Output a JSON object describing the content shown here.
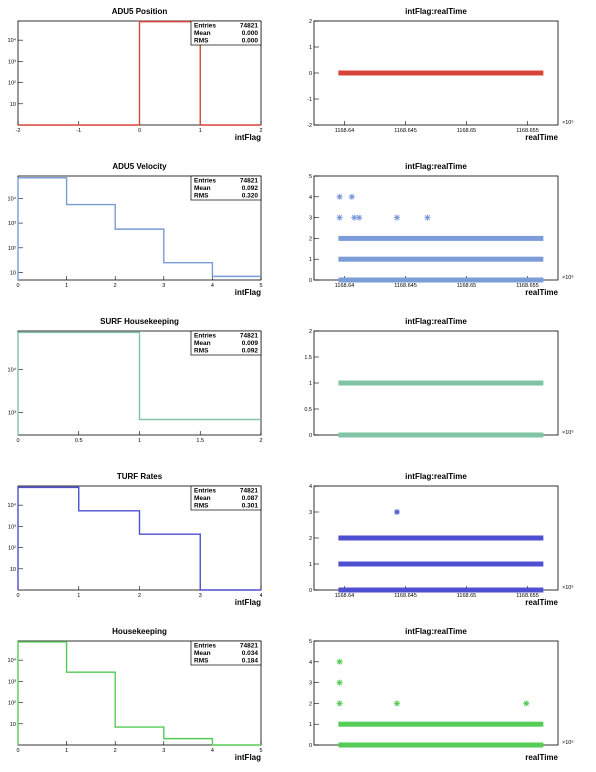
{
  "page": {
    "bg": "#ffffff"
  },
  "chart_data": [
    {
      "type": "histogram",
      "title": "ADU5 Position",
      "xlabel": "intFlag",
      "ylabel": "",
      "color": "#d9443a",
      "log_y": true,
      "xlim": [
        -2,
        2
      ],
      "ylim": [
        1,
        80000
      ],
      "xticks": [
        -2,
        -1,
        0,
        1,
        2
      ],
      "yticks": [
        {
          "v": 10,
          "label": "10"
        },
        {
          "v": 100,
          "label": "10²"
        },
        {
          "v": 1000,
          "label": "10³"
        },
        {
          "v": 10000,
          "label": "10⁴"
        }
      ],
      "bin_edges": [
        -2,
        -1,
        0,
        1,
        2
      ],
      "counts": [
        0,
        0,
        74821,
        0
      ],
      "stats": [
        {
          "k": "Entries",
          "v": "74821"
        },
        {
          "k": "Mean",
          "v": "0.000"
        },
        {
          "k": "RMS",
          "v": "0.000"
        }
      ]
    },
    {
      "type": "scatter",
      "title": "intFlag:realTime",
      "xlabel": "realTime",
      "ylabel": "",
      "color": "#d9443a",
      "exponent": "×10⁶",
      "xlim": [
        1168.6375,
        1168.6575
      ],
      "ylim": [
        -2,
        2
      ],
      "xticks": [
        {
          "v": 1168.64,
          "label": "1168.64"
        },
        {
          "v": 1168.645,
          "label": "1168.645"
        },
        {
          "v": 1168.65,
          "label": "1168.65"
        },
        {
          "v": 1168.655,
          "label": "1168.655"
        }
      ],
      "yticks": [
        {
          "v": -2,
          "label": "-2"
        },
        {
          "v": -1,
          "label": "-1"
        },
        {
          "v": 0,
          "label": "0"
        },
        {
          "v": 1,
          "label": "1"
        },
        {
          "v": 2,
          "label": "2"
        }
      ],
      "bands": [
        {
          "y": 0,
          "x0": 1168.6395,
          "x1": 1168.6563
        }
      ],
      "points": []
    },
    {
      "type": "histogram",
      "title": "ADU5 Velocity",
      "xlabel": "intFlag",
      "ylabel": "",
      "color": "#7b9bd9",
      "log_y": true,
      "xlim": [
        0,
        5
      ],
      "ylim": [
        5,
        80000
      ],
      "xticks": [
        0,
        1,
        2,
        3,
        4,
        5
      ],
      "yticks": [
        {
          "v": 10,
          "label": "10"
        },
        {
          "v": 100,
          "label": "10²"
        },
        {
          "v": 1000,
          "label": "10³"
        },
        {
          "v": 10000,
          "label": "10⁴"
        }
      ],
      "bin_edges": [
        0,
        1,
        2,
        3,
        4,
        5
      ],
      "counts": [
        68000,
        5600,
        570,
        25,
        7
      ],
      "stats": [
        {
          "k": "Entries",
          "v": "74821"
        },
        {
          "k": "Mean",
          "v": "0.092"
        },
        {
          "k": "RMS",
          "v": "0.320"
        }
      ]
    },
    {
      "type": "scatter",
      "title": "intFlag:realTime",
      "xlabel": "realTime",
      "ylabel": "",
      "color": "#7b9bd9",
      "exponent": "×10⁶",
      "xlim": [
        1168.6375,
        1168.6575
      ],
      "ylim": [
        0,
        5
      ],
      "xticks": [
        {
          "v": 1168.64,
          "label": "1168.64"
        },
        {
          "v": 1168.645,
          "label": "1168.645"
        },
        {
          "v": 1168.65,
          "label": "1168.65"
        },
        {
          "v": 1168.655,
          "label": "1168.655"
        }
      ],
      "yticks": [
        {
          "v": 0,
          "label": "0"
        },
        {
          "v": 1,
          "label": "1"
        },
        {
          "v": 2,
          "label": "2"
        },
        {
          "v": 3,
          "label": "3"
        },
        {
          "v": 4,
          "label": "4"
        },
        {
          "v": 5,
          "label": "5"
        }
      ],
      "bands": [
        {
          "y": 0,
          "x0": 1168.6395,
          "x1": 1168.6563
        },
        {
          "y": 1,
          "x0": 1168.6395,
          "x1": 1168.6563
        },
        {
          "y": 2,
          "x0": 1168.6395,
          "x1": 1168.6563
        }
      ],
      "points": [
        [
          1168.6396,
          4
        ],
        [
          1168.6406,
          4
        ],
        [
          1168.6396,
          3
        ],
        [
          1168.6408,
          3
        ],
        [
          1168.6412,
          3
        ],
        [
          1168.6443,
          3
        ],
        [
          1168.6468,
          3
        ]
      ]
    },
    {
      "type": "histogram",
      "title": "SURF Housekeeping",
      "xlabel": "",
      "ylabel": "",
      "color": "#7fc4a4",
      "log_y": true,
      "xlim": [
        0,
        2
      ],
      "ylim": [
        300,
        80000
      ],
      "xticks": [
        {
          "v": 0,
          "label": "0"
        },
        {
          "v": 0.5,
          "label": "0.5"
        },
        {
          "v": 1,
          "label": "1"
        },
        {
          "v": 1.5,
          "label": "1.5"
        },
        {
          "v": 2,
          "label": "2"
        }
      ],
      "yticks": [
        {
          "v": 1000,
          "label": "10³"
        },
        {
          "v": 10000,
          "label": "10⁴"
        }
      ],
      "bin_edges": [
        0,
        1,
        2
      ],
      "counts": [
        74100,
        690
      ],
      "stats": [
        {
          "k": "Entries",
          "v": "74821"
        },
        {
          "k": "Mean",
          "v": "0.009"
        },
        {
          "k": "RMS",
          "v": "0.092"
        }
      ]
    },
    {
      "type": "scatter",
      "title": "intFlag:realTime",
      "xlabel": "",
      "ylabel": "",
      "color": "#7fc4a4",
      "exponent": "×10⁶",
      "xlim": [
        1168.6375,
        1168.6575
      ],
      "ylim": [
        0,
        2
      ],
      "xticks": [],
      "yticks": [
        {
          "v": 0,
          "label": "0"
        },
        {
          "v": 0.5,
          "label": "0.5"
        },
        {
          "v": 1,
          "label": "1"
        },
        {
          "v": 1.5,
          "label": "1.5"
        },
        {
          "v": 2,
          "label": "2"
        }
      ],
      "bands": [
        {
          "y": 0,
          "x0": 1168.6395,
          "x1": 1168.6563
        },
        {
          "y": 1,
          "x0": 1168.6395,
          "x1": 1168.6563
        }
      ],
      "points": []
    },
    {
      "type": "histogram",
      "title": "TURF Rates",
      "xlabel": "intFlag",
      "ylabel": "",
      "color": "#4f4fd1",
      "log_y": true,
      "xlim": [
        0,
        4
      ],
      "ylim": [
        1,
        80000
      ],
      "xticks": [
        0,
        1,
        2,
        3,
        4
      ],
      "yticks": [
        {
          "v": 10,
          "label": "10"
        },
        {
          "v": 100,
          "label": "10²"
        },
        {
          "v": 1000,
          "label": "10³"
        },
        {
          "v": 10000,
          "label": "10⁴"
        }
      ],
      "bin_edges": [
        0,
        1,
        2,
        3,
        4
      ],
      "counts": [
        69000,
        5400,
        430,
        1
      ],
      "stats": [
        {
          "k": "Entries",
          "v": "74821"
        },
        {
          "k": "Mean",
          "v": "0.087"
        },
        {
          "k": "RMS",
          "v": "0.301"
        }
      ]
    },
    {
      "type": "scatter",
      "title": "intFlag:realTime",
      "xlabel": "realTime",
      "ylabel": "",
      "color": "#4f4fd1",
      "exponent": "×10⁶",
      "xlim": [
        1168.6375,
        1168.6575
      ],
      "ylim": [
        0,
        4
      ],
      "xticks": [
        {
          "v": 1168.64,
          "label": "1168.64"
        },
        {
          "v": 1168.645,
          "label": "1168.645"
        },
        {
          "v": 1168.65,
          "label": "1168.65"
        },
        {
          "v": 1168.655,
          "label": "1168.655"
        }
      ],
      "yticks": [
        {
          "v": 0,
          "label": "0"
        },
        {
          "v": 1,
          "label": "1"
        },
        {
          "v": 2,
          "label": "2"
        },
        {
          "v": 3,
          "label": "3"
        },
        {
          "v": 4,
          "label": "4"
        }
      ],
      "bands": [
        {
          "y": 0,
          "x0": 1168.6395,
          "x1": 1168.6563
        },
        {
          "y": 1,
          "x0": 1168.6395,
          "x1": 1168.6563
        },
        {
          "y": 2,
          "x0": 1168.6395,
          "x1": 1168.6563
        }
      ],
      "points": [
        [
          1168.6443,
          3
        ]
      ]
    },
    {
      "type": "histogram",
      "title": "Housekeeping",
      "xlabel": "intFlag",
      "ylabel": "",
      "color": "#55cc55",
      "log_y": true,
      "xlim": [
        0,
        5
      ],
      "ylim": [
        1,
        80000
      ],
      "xticks": [
        0,
        1,
        2,
        3,
        4,
        5
      ],
      "yticks": [
        {
          "v": 10,
          "label": "10"
        },
        {
          "v": 100,
          "label": "10²"
        },
        {
          "v": 1000,
          "label": "10³"
        },
        {
          "v": 10000,
          "label": "10⁴"
        }
      ],
      "bin_edges": [
        0,
        1,
        2,
        3,
        4,
        5
      ],
      "counts": [
        72000,
        2700,
        7,
        2,
        1
      ],
      "stats": [
        {
          "k": "Entries",
          "v": "74821"
        },
        {
          "k": "Mean",
          "v": "0.034"
        },
        {
          "k": "RMS",
          "v": "0.184"
        }
      ]
    },
    {
      "type": "scatter",
      "title": "intFlag:realTime",
      "xlabel": "realTime",
      "ylabel": "",
      "color": "#55cc55",
      "exponent": "×10⁶",
      "xlim": [
        1168.6375,
        1168.6575
      ],
      "ylim": [
        0,
        5
      ],
      "xticks": [],
      "yticks": [
        {
          "v": 0,
          "label": "0"
        },
        {
          "v": 1,
          "label": "1"
        },
        {
          "v": 2,
          "label": "2"
        },
        {
          "v": 3,
          "label": "3"
        },
        {
          "v": 4,
          "label": "4"
        },
        {
          "v": 5,
          "label": "5"
        }
      ],
      "bands": [
        {
          "y": 0,
          "x0": 1168.6395,
          "x1": 1168.6563
        },
        {
          "y": 1,
          "x0": 1168.6395,
          "x1": 1168.6563
        }
      ],
      "points": [
        [
          1168.6396,
          4
        ],
        [
          1168.6396,
          3
        ],
        [
          1168.6396,
          2
        ],
        [
          1168.6443,
          2
        ],
        [
          1168.6549,
          2
        ]
      ]
    }
  ]
}
